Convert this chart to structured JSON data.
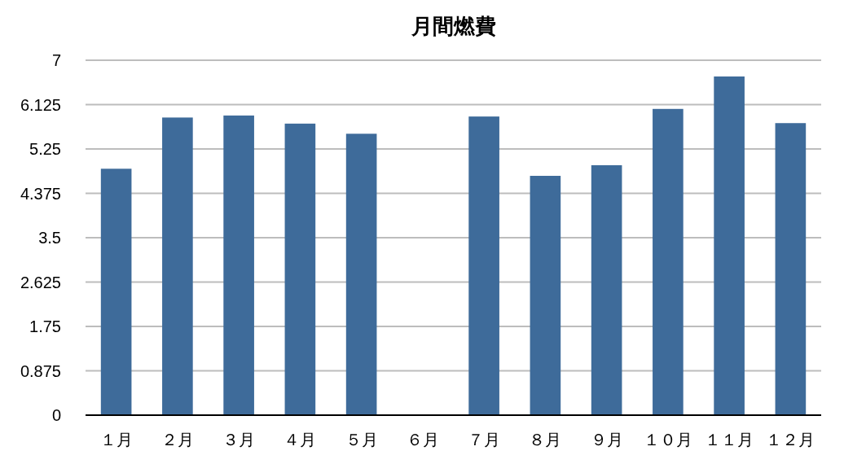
{
  "chart_data": {
    "type": "bar",
    "title": "月間燃費",
    "categories": [
      "１月",
      "２月",
      "３月",
      "４月",
      "５月",
      "６月",
      "７月",
      "８月",
      "９月",
      "１０月",
      "１１月",
      "１２月"
    ],
    "values": [
      4.86,
      5.87,
      5.91,
      5.75,
      5.55,
      null,
      5.89,
      4.72,
      4.93,
      6.04,
      6.68,
      5.76
    ],
    "color": "#3e6b9a",
    "ylim": [
      0,
      7
    ],
    "yticks": [
      0,
      0.875,
      1.75,
      2.625,
      3.5,
      4.375,
      5.25,
      6.125,
      7
    ],
    "grid": "y"
  }
}
